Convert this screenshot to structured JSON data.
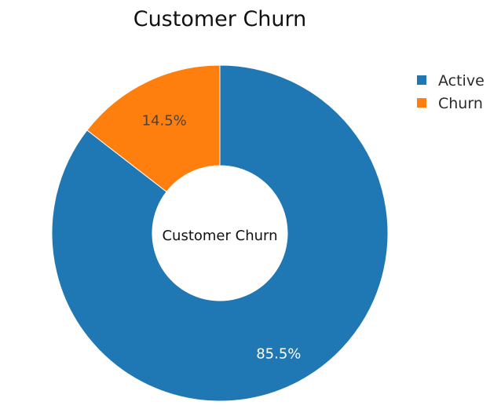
{
  "chart_data": {
    "type": "pie",
    "title": "Customer Churn",
    "hole_label": "Customer Churn",
    "slices": [
      {
        "label": "Active",
        "value": 85.5,
        "display": "85.5%",
        "color": "#1f77b4",
        "text_color": "#ffffff"
      },
      {
        "label": "Churn",
        "value": 14.5,
        "display": "14.5%",
        "color": "#ff7f0e",
        "text_color": "#444444"
      }
    ],
    "legend_position": "top-right"
  }
}
